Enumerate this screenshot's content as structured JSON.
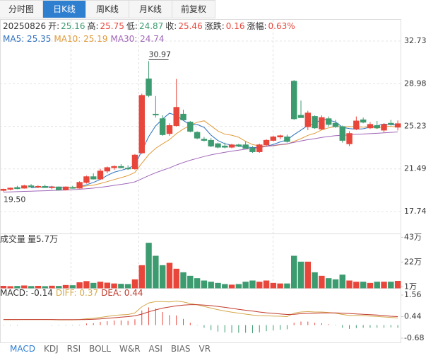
{
  "tabs": {
    "items": [
      "分时图",
      "日K线",
      "周K线",
      "月K线",
      "前复权"
    ],
    "active": 1
  },
  "info": {
    "date": "20250826",
    "items": [
      {
        "label": "开:",
        "value": "25.16",
        "color": "#3d9b70"
      },
      {
        "label": "高:",
        "value": "25.75",
        "color": "#e8463b"
      },
      {
        "label": "低:",
        "value": "24.87",
        "color": "#3d9b70"
      },
      {
        "label": "收:",
        "value": "25.46",
        "color": "#e8463b"
      },
      {
        "label": "涨跌:",
        "value": "0.16",
        "color": "#e8463b"
      },
      {
        "label": "涨幅:",
        "value": "0.63%",
        "color": "#e8463b"
      }
    ]
  },
  "indicator_tabs": {
    "items": [
      "MACD",
      "KDJ",
      "RSI",
      "BOLL",
      "W&R",
      "ASI",
      "BIAS",
      "VR"
    ],
    "active": 0
  },
  "chart_data": [
    {
      "type": "candlestick",
      "legend": [
        {
          "text": "MA5: 25.35",
          "color": "#2c6fbe"
        },
        {
          "text": "MA10: 25.19",
          "color": "#e09a3a"
        },
        {
          "text": "MA30: 24.74",
          "color": "#a066b8"
        }
      ],
      "up_color": "#e8463b",
      "down_color": "#3d9b70",
      "open": [
        19.6,
        19.7,
        19.85,
        19.8,
        20.0,
        19.9,
        19.95,
        19.85,
        19.9,
        19.65,
        19.85,
        19.8,
        20.3,
        20.8,
        20.6,
        21.3,
        21.6,
        21.7,
        21.55,
        21.5,
        22.9,
        29.4,
        26.3,
        25.9,
        24.6,
        25.3,
        26.3,
        25.6,
        24.7,
        24.1,
        24.0,
        23.7,
        23.5,
        23.4,
        23.6,
        23.6,
        23.3,
        23.0,
        23.6,
        24.0,
        24.3,
        24.3,
        29.2,
        26.2,
        25.2,
        26.1,
        25.0,
        25.9,
        25.5,
        25.2,
        23.7,
        25.0,
        25.8,
        25.1,
        25.3,
        24.9,
        25.5,
        25.16
      ],
      "high": [
        19.75,
        19.85,
        20.0,
        20.1,
        20.15,
        20.05,
        20.1,
        20.0,
        19.95,
        19.95,
        20.0,
        20.4,
        20.9,
        21.1,
        21.5,
        21.7,
        21.8,
        21.9,
        21.8,
        22.8,
        28.1,
        30.97,
        27.9,
        26.2,
        25.5,
        29.4,
        26.7,
        25.7,
        24.8,
        24.3,
        24.2,
        23.8,
        23.8,
        23.7,
        23.7,
        23.9,
        23.5,
        23.7,
        24.1,
        24.4,
        24.5,
        24.5,
        29.3,
        27.5,
        26.6,
        26.2,
        26.2,
        26.1,
        25.8,
        25.3,
        24.8,
        26.1,
        26.0,
        25.6,
        25.7,
        25.5,
        25.8,
        25.75
      ],
      "low": [
        19.5,
        19.6,
        19.7,
        19.75,
        19.85,
        19.8,
        19.85,
        19.7,
        19.6,
        19.6,
        19.75,
        19.75,
        20.2,
        20.55,
        20.55,
        21.1,
        21.4,
        21.55,
        21.4,
        21.4,
        22.8,
        27.8,
        26.0,
        24.4,
        24.4,
        25.2,
        25.8,
        24.7,
        24.1,
        23.9,
        23.4,
        23.3,
        23.3,
        23.3,
        23.4,
        23.3,
        22.9,
        22.9,
        23.5,
        23.9,
        24.1,
        23.8,
        25.8,
        26.0,
        24.9,
        25.0,
        24.9,
        25.2,
        25.1,
        23.8,
        23.5,
        24.9,
        25.5,
        25.0,
        25.0,
        24.7,
        25.3,
        24.87
      ],
      "close": [
        19.7,
        19.8,
        19.75,
        20.0,
        19.9,
        19.95,
        19.85,
        19.9,
        19.65,
        19.9,
        19.8,
        20.3,
        20.8,
        20.6,
        21.3,
        21.6,
        21.7,
        21.6,
        21.5,
        22.7,
        27.95,
        27.95,
        26.25,
        24.5,
        25.3,
        26.9,
        25.8,
        24.8,
        24.2,
        24.0,
        23.5,
        23.4,
        23.4,
        23.6,
        23.5,
        23.3,
        23.0,
        23.6,
        24.0,
        24.3,
        24.4,
        23.9,
        25.9,
        26.0,
        26.4,
        25.1,
        26.0,
        25.4,
        25.2,
        24.0,
        24.6,
        25.7,
        25.6,
        25.4,
        25.1,
        25.4,
        25.4,
        25.46
      ],
      "series": [
        {
          "name": "MA5",
          "color": "#2c6fbe",
          "values": [
            null,
            null,
            null,
            null,
            19.83,
            19.88,
            19.89,
            19.92,
            19.85,
            19.85,
            19.82,
            19.91,
            20.09,
            20.3,
            20.56,
            20.92,
            21.2,
            21.36,
            21.54,
            21.82,
            23.09,
            24.34,
            25.27,
            25.87,
            26.39,
            26.18,
            25.75,
            25.35,
            25.4,
            25.14,
            24.46,
            23.98,
            23.7,
            23.58,
            23.48,
            23.44,
            23.36,
            23.4,
            23.48,
            23.64,
            23.86,
            24.04,
            24.5,
            24.9,
            25.32,
            25.46,
            25.88,
            25.78,
            25.62,
            25.14,
            25.04,
            24.98,
            25.02,
            25.16,
            25.28,
            25.44,
            25.38,
            25.35
          ]
        },
        {
          "name": "MA10",
          "color": "#e09a3a",
          "values": [
            null,
            null,
            null,
            null,
            null,
            null,
            null,
            null,
            null,
            19.85,
            19.86,
            19.91,
            20.0,
            20.06,
            20.2,
            20.37,
            20.55,
            20.72,
            20.9,
            21.18,
            21.99,
            22.75,
            23.3,
            23.69,
            24.06,
            24.59,
            25.0,
            25.32,
            25.59,
            25.72,
            25.28,
            24.82,
            24.54,
            24.45,
            24.27,
            23.91,
            23.63,
            23.51,
            23.49,
            23.52,
            23.61,
            23.66,
            23.91,
            24.15,
            24.44,
            24.62,
            24.92,
            25.1,
            25.22,
            25.19,
            25.21,
            25.19,
            25.16,
            25.19,
            25.06,
            25.24,
            25.22,
            25.19
          ]
        },
        {
          "name": "MA30",
          "color": "#a066b8",
          "values": [
            19.45,
            19.47,
            19.49,
            19.51,
            19.53,
            19.55,
            19.57,
            19.59,
            19.61,
            19.63,
            19.66,
            19.7,
            19.75,
            19.8,
            19.87,
            19.95,
            20.04,
            20.13,
            20.22,
            20.35,
            20.62,
            20.9,
            21.15,
            21.37,
            21.58,
            21.83,
            22.05,
            22.25,
            22.42,
            22.58,
            22.72,
            22.84,
            22.95,
            23.05,
            23.14,
            23.22,
            23.29,
            23.37,
            23.46,
            23.55,
            23.63,
            23.7,
            23.82,
            23.94,
            24.06,
            24.15,
            24.26,
            24.34,
            24.41,
            24.44,
            24.48,
            24.53,
            24.56,
            24.59,
            24.62,
            24.66,
            24.7,
            24.74
          ]
        }
      ],
      "high_label": "30.97",
      "low_label": "19.50",
      "ylim": [
        15.81,
        34.6
      ],
      "yticks": [
        17.74,
        21.49,
        25.23,
        28.98,
        32.73
      ],
      "grid": true
    },
    {
      "type": "bar",
      "title": "成交量",
      "value_label": "量5.7万",
      "values": [
        1.5,
        1.2,
        1.4,
        1.8,
        1.3,
        1.5,
        1.2,
        1.6,
        1.4,
        2.2,
        2.0,
        4.5,
        5.5,
        4.0,
        5.0,
        4.2,
        3.5,
        3.2,
        3.0,
        7.0,
        19,
        38,
        27,
        19,
        21,
        16,
        13,
        10,
        8,
        6,
        5,
        4,
        3,
        2.5,
        3,
        5,
        6,
        5,
        6,
        4,
        3.5,
        3.5,
        27,
        22,
        22,
        13,
        10,
        8,
        7,
        11,
        6,
        5,
        5,
        4,
        5,
        5,
        5,
        5.7
      ],
      "ylim": [
        0,
        45
      ],
      "yticks": [
        {
          "value": 1,
          "label": "1万"
        },
        {
          "value": 22,
          "label": "22万"
        },
        {
          "value": 43,
          "label": "43万"
        }
      ]
    },
    {
      "type": "macd",
      "legend": [
        {
          "text": "MACD: -0.14",
          "color": "#333333"
        },
        {
          "text": "DIFF: 0.37",
          "color": "#d4a84a"
        },
        {
          "text": "DEA: 0.44",
          "color": "#c0392b"
        }
      ],
      "values": [
        -0.02,
        -0.02,
        -0.02,
        0,
        0,
        0,
        0,
        -0.02,
        -0.02,
        -0.02,
        -0.02,
        0.02,
        0.08,
        0.1,
        0.16,
        0.2,
        0.24,
        0.24,
        0.22,
        0.3,
        0.76,
        0.92,
        0.86,
        0.68,
        0.52,
        0.5,
        0.32,
        0.12,
        -0.02,
        -0.14,
        -0.26,
        -0.34,
        -0.38,
        -0.4,
        -0.4,
        -0.4,
        -0.42,
        -0.38,
        -0.32,
        -0.28,
        -0.24,
        -0.22,
        0.12,
        0.18,
        0.18,
        0.12,
        0.1,
        0.04,
        -0.02,
        -0.14,
        -0.2,
        -0.16,
        -0.14,
        -0.14,
        -0.14,
        -0.14,
        -0.12,
        -0.14
      ],
      "series": [
        {
          "name": "DIFF",
          "color": "#d4a84a",
          "values": [
            0.28,
            0.28,
            0.28,
            0.29,
            0.29,
            0.29,
            0.29,
            0.28,
            0.27,
            0.27,
            0.27,
            0.29,
            0.33,
            0.35,
            0.4,
            0.45,
            0.5,
            0.53,
            0.55,
            0.63,
            0.95,
            1.15,
            1.22,
            1.22,
            1.2,
            1.25,
            1.2,
            1.12,
            1.05,
            0.97,
            0.88,
            0.8,
            0.73,
            0.67,
            0.62,
            0.57,
            0.52,
            0.49,
            0.48,
            0.47,
            0.46,
            0.44,
            0.62,
            0.68,
            0.7,
            0.68,
            0.68,
            0.65,
            0.62,
            0.55,
            0.5,
            0.5,
            0.49,
            0.47,
            0.45,
            0.42,
            0.4,
            0.37
          ]
        },
        {
          "name": "DEA",
          "color": "#c0392b",
          "values": [
            0.29,
            0.29,
            0.29,
            0.29,
            0.29,
            0.29,
            0.29,
            0.29,
            0.28,
            0.28,
            0.28,
            0.28,
            0.29,
            0.3,
            0.32,
            0.35,
            0.38,
            0.41,
            0.44,
            0.48,
            0.57,
            0.69,
            0.79,
            0.88,
            0.94,
            1.0,
            1.04,
            1.06,
            1.06,
            1.04,
            1.01,
            0.97,
            0.92,
            0.87,
            0.82,
            0.77,
            0.73,
            0.68,
            0.64,
            0.61,
            0.58,
            0.55,
            0.56,
            0.59,
            0.61,
            0.62,
            0.63,
            0.63,
            0.63,
            0.62,
            0.6,
            0.58,
            0.56,
            0.54,
            0.52,
            0.49,
            0.46,
            0.44
          ]
        }
      ],
      "ylim": [
        -0.94,
        1.93
      ],
      "yticks": [
        -0.68,
        0.44,
        1.56
      ]
    }
  ]
}
